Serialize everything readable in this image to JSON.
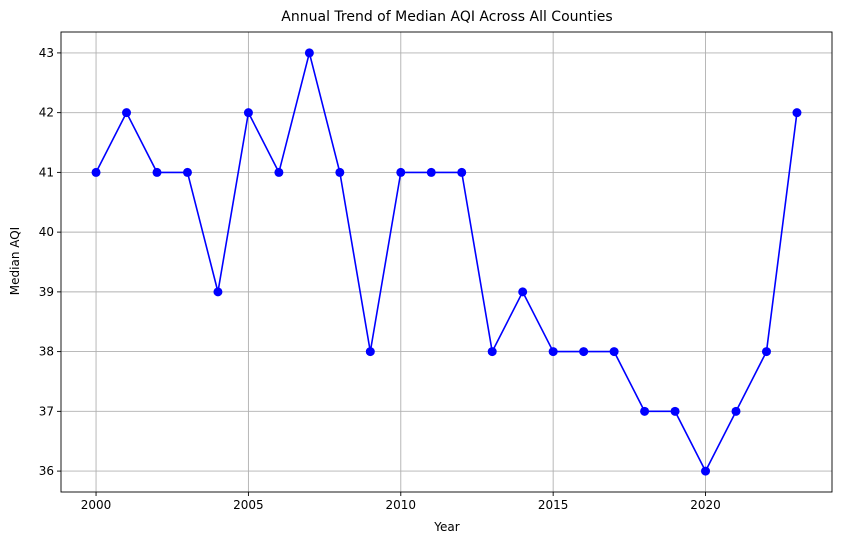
{
  "chart_data": {
    "type": "line",
    "title": "Annual Trend of Median AQI Across All Counties",
    "xlabel": "Year",
    "ylabel": "Median AQI",
    "x": [
      2000,
      2001,
      2002,
      2003,
      2004,
      2005,
      2006,
      2007,
      2008,
      2009,
      2010,
      2011,
      2012,
      2013,
      2014,
      2015,
      2016,
      2017,
      2018,
      2019,
      2020,
      2021,
      2022,
      2023
    ],
    "series": [
      {
        "values": [
          41,
          42,
          41,
          41,
          39,
          42,
          41,
          43,
          41,
          38,
          41,
          41,
          41,
          38,
          39,
          38,
          38,
          38,
          37,
          37,
          36,
          37,
          38,
          42
        ],
        "color": "#0000ff",
        "marker": "circle"
      }
    ],
    "xlim": [
      1998.85,
      2024.15
    ],
    "ylim": [
      35.65,
      43.35
    ],
    "xticks": [
      2000,
      2005,
      2010,
      2015,
      2020
    ],
    "yticks": [
      36,
      37,
      38,
      39,
      40,
      41,
      42,
      43
    ],
    "grid": true,
    "legend": "none"
  }
}
